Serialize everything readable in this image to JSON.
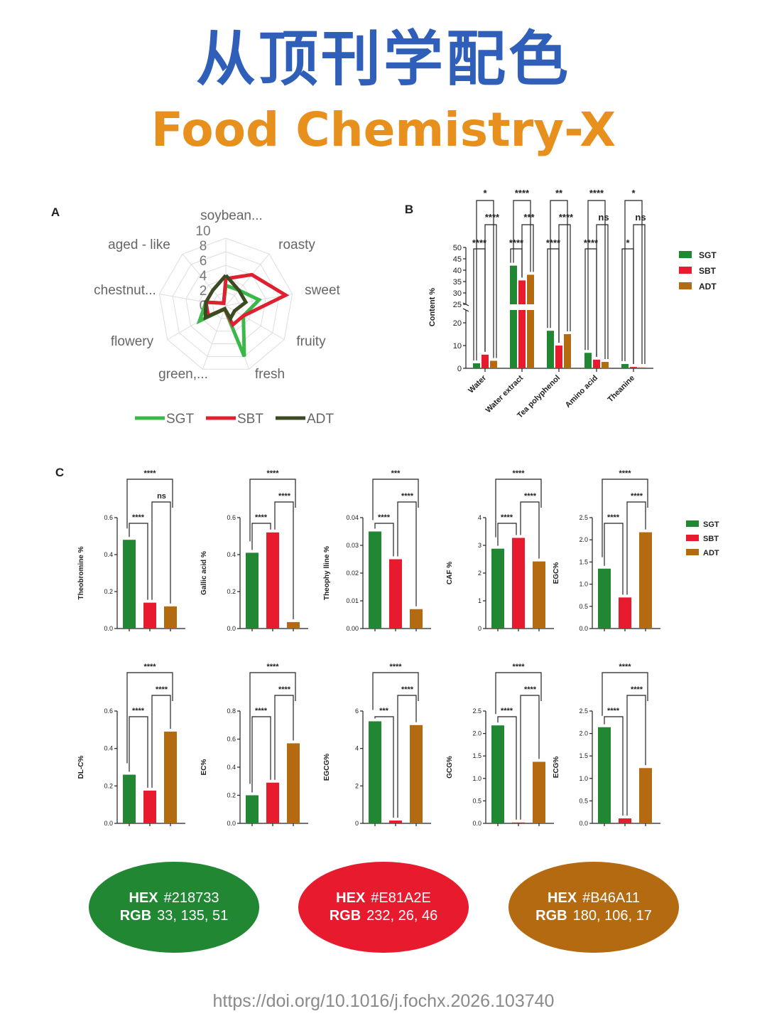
{
  "header": {
    "title_cn": "从顶刊学配色",
    "title_en": "Food Chemistry-X"
  },
  "colors": {
    "SGT": "#218733",
    "SBT": "#E81A2E",
    "ADT": "#B46A11"
  },
  "legend": [
    "SGT",
    "SBT",
    "ADT"
  ],
  "chart_data": [
    {
      "panel": "A",
      "type": "radar",
      "categories": [
        "soybean...",
        "roasty",
        "sweet",
        "fruity",
        "fresh",
        "green,...",
        "flowery",
        "chestnut...",
        "aged - like"
      ],
      "rticks": [
        "0",
        "2",
        "4",
        "6",
        "8",
        "10"
      ],
      "rlim": [
        0,
        10
      ],
      "series": [
        {
          "name": "SGT",
          "values": [
            3,
            3,
            5,
            3,
            8,
            0.5,
            4.5,
            3,
            0.5
          ]
        },
        {
          "name": "SBT",
          "values": [
            4,
            6,
            9,
            3,
            3,
            0.5,
            3,
            3,
            0.5
          ]
        },
        {
          "name": "ADT",
          "values": [
            4.5,
            3,
            3,
            1.5,
            2,
            0.5,
            3.5,
            3,
            3
          ]
        }
      ]
    },
    {
      "panel": "B",
      "type": "bar",
      "ylabel": "Content %",
      "yticks_low": [
        "0",
        "10",
        "20"
      ],
      "yticks_high": [
        "25",
        "30",
        "35",
        "40",
        "45",
        "50"
      ],
      "categories": [
        "Water",
        "Water extract",
        "Tea polyphenol",
        "Amino acid",
        "Theanine"
      ],
      "series": [
        {
          "name": "SGT",
          "values": [
            2.2,
            42,
            16.5,
            6.8,
            1.9
          ]
        },
        {
          "name": "SBT",
          "values": [
            6,
            35.5,
            10,
            3.8,
            0.6
          ]
        },
        {
          "name": "ADT",
          "values": [
            3.3,
            38,
            15,
            2.8,
            0.4
          ]
        }
      ],
      "significance": [
        {
          "top": "*",
          "mid": "****",
          "low": "****"
        },
        {
          "top": "****",
          "mid": "***",
          "low": "****"
        },
        {
          "top": "**",
          "mid": "****",
          "low": "****"
        },
        {
          "top": "****",
          "mid": "ns",
          "low": "****"
        },
        {
          "top": "*",
          "mid": "ns",
          "low": "*"
        }
      ]
    },
    {
      "panel": "C",
      "type": "bar",
      "legend": [
        "SGT",
        "SBT",
        "ADT"
      ],
      "subplots": [
        {
          "ylabel": "Theobromine %",
          "ylim": [
            0,
            0.6
          ],
          "yticks": [
            "0.0",
            "0.2",
            "0.4",
            "0.6"
          ],
          "values": [
            0.48,
            0.14,
            0.12
          ],
          "sig": [
            "****",
            "****",
            "ns"
          ]
        },
        {
          "ylabel": "Gallic acid %",
          "ylim": [
            0,
            0.6
          ],
          "yticks": [
            "0.0",
            "0.2",
            "0.4",
            "0.6"
          ],
          "values": [
            0.41,
            0.52,
            0.035
          ],
          "sig": [
            "****",
            "****",
            "****"
          ]
        },
        {
          "ylabel": "Theophy lline %",
          "ylim": [
            0,
            0.04
          ],
          "yticks": [
            "0.00",
            "0.01",
            "0.02",
            "0.03",
            "0.04"
          ],
          "values": [
            0.035,
            0.025,
            0.007
          ],
          "sig": [
            "****",
            "***",
            "****"
          ]
        },
        {
          "ylabel": "CAF %",
          "ylim": [
            0,
            4
          ],
          "yticks": [
            "0",
            "1",
            "2",
            "3",
            "4"
          ],
          "values": [
            2.88,
            3.27,
            2.42
          ],
          "sig": [
            "****",
            "****",
            "****"
          ]
        },
        {
          "ylabel": "EGC%",
          "ylim": [
            0,
            2.5
          ],
          "yticks": [
            "0.0",
            "0.5",
            "1.0",
            "1.5",
            "2.0",
            "2.5"
          ],
          "values": [
            1.35,
            0.7,
            2.17
          ],
          "sig": [
            "****",
            "****",
            "****"
          ]
        },
        {
          "ylabel": "DL-C%",
          "ylim": [
            0,
            0.6
          ],
          "yticks": [
            "0.0",
            "0.2",
            "0.4",
            "0.6"
          ],
          "values": [
            0.26,
            0.175,
            0.49
          ],
          "sig": [
            "****",
            "****",
            "****"
          ]
        },
        {
          "ylabel": "EC%",
          "ylim": [
            0,
            0.8
          ],
          "yticks": [
            "0.0",
            "0.2",
            "0.4",
            "0.6",
            "0.8"
          ],
          "values": [
            0.2,
            0.29,
            0.57
          ],
          "sig": [
            "****",
            "****",
            "****"
          ]
        },
        {
          "ylabel": "EGCG%",
          "ylim": [
            0,
            6
          ],
          "yticks": [
            "0",
            "2",
            "4",
            "6"
          ],
          "values": [
            5.45,
            0.15,
            5.25
          ],
          "sig": [
            "***",
            "****",
            "****"
          ]
        },
        {
          "ylabel": "GCG%",
          "ylim": [
            0,
            2.5
          ],
          "yticks": [
            "0.0",
            "0.5",
            "1.0",
            "1.5",
            "2.0",
            "2.5"
          ],
          "values": [
            2.18,
            0.02,
            1.37
          ],
          "sig": [
            "****",
            "****",
            "****"
          ]
        },
        {
          "ylabel": "ECG%",
          "ylim": [
            0,
            2.5
          ],
          "yticks": [
            "0.0",
            "0.5",
            "1.0",
            "1.5",
            "2.0",
            "2.5"
          ],
          "values": [
            2.14,
            0.11,
            1.23
          ],
          "sig": [
            "****",
            "****",
            "****"
          ]
        }
      ]
    }
  ],
  "swatches": [
    {
      "hex_label": "HEX",
      "hex": "#218733",
      "rgb_label": "RGB",
      "rgb": "33, 135, 51",
      "color": "#218733"
    },
    {
      "hex_label": "HEX",
      "hex": "#E81A2E",
      "rgb_label": "RGB",
      "rgb": "232, 26, 46",
      "color": "#E81A2E"
    },
    {
      "hex_label": "HEX",
      "hex": "#B46A11",
      "rgb_label": "RGB",
      "rgb": "180, 106, 17",
      "color": "#B46A11"
    }
  ],
  "panel_labels": [
    "A",
    "B",
    "C"
  ],
  "footer": {
    "doi": "https://doi.org/10.1016/j.fochx.2026.103740"
  }
}
